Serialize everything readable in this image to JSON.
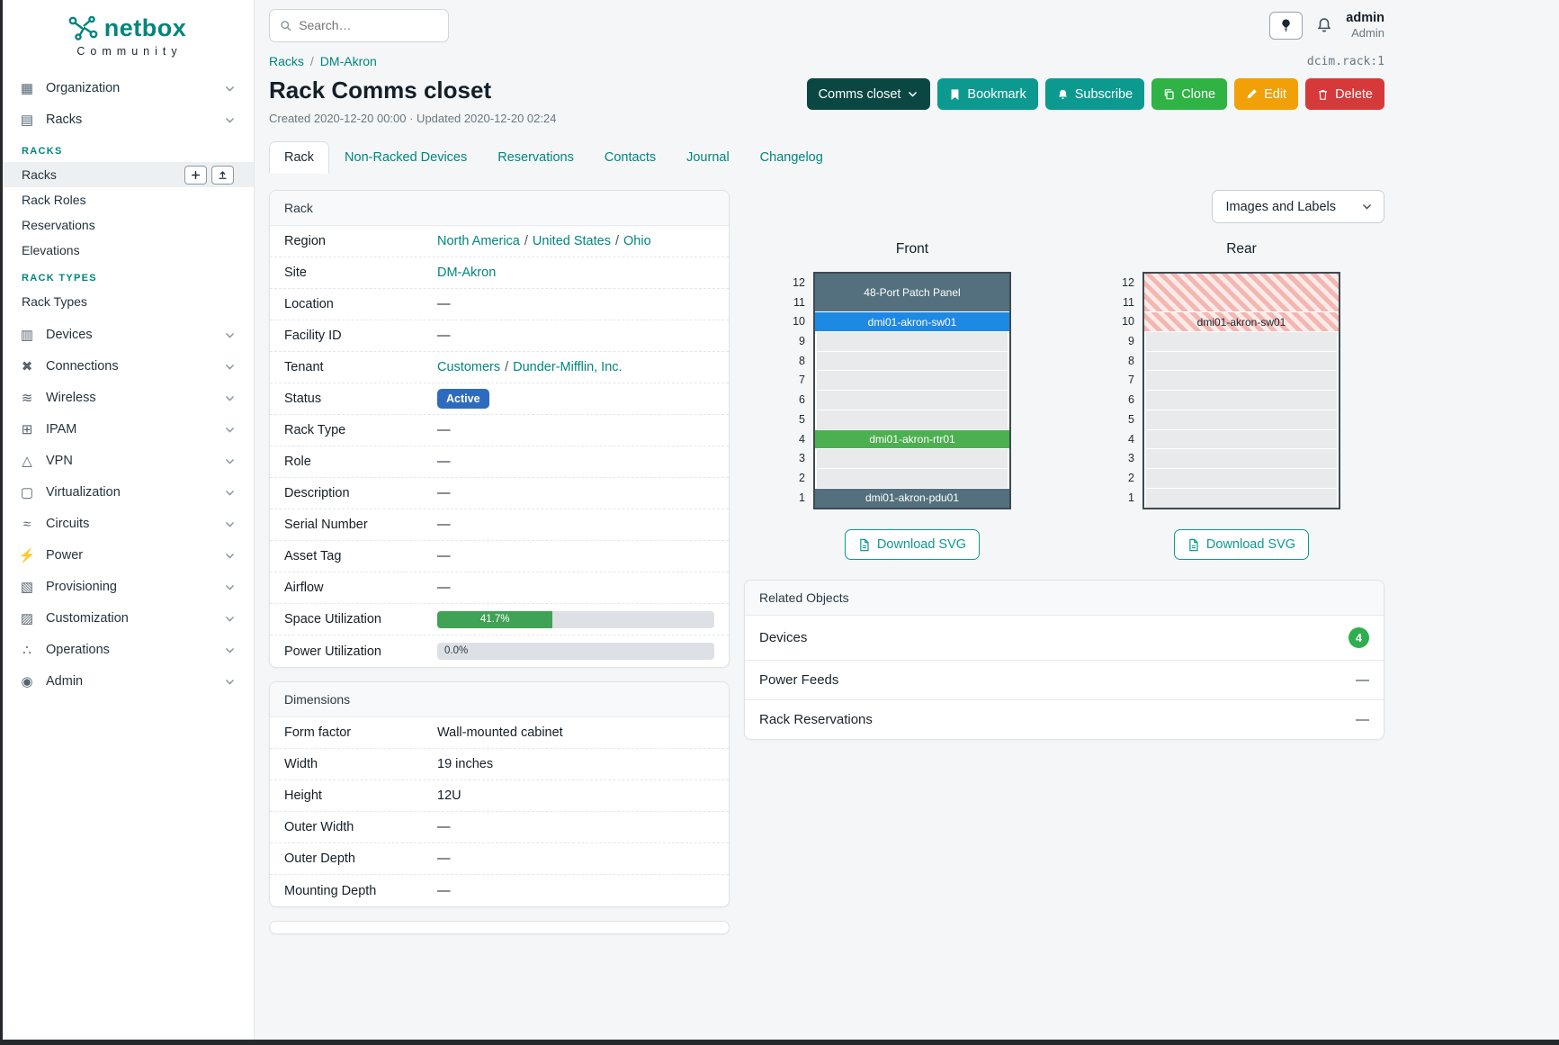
{
  "brand": {
    "name": "netbox",
    "community": "Community"
  },
  "topbar": {
    "search_placeholder": "Search…",
    "user_name": "admin",
    "user_role": "Admin"
  },
  "sidebar": {
    "sections": [
      {
        "label": "Organization",
        "icon": "▦",
        "icon_name": "organization-icon"
      },
      {
        "label": "Racks",
        "icon": "▤",
        "icon_name": "racks-icon",
        "expanded": true,
        "children": [
          {
            "type": "header",
            "label": "RACKS"
          },
          {
            "type": "link",
            "label": "Racks",
            "active": true,
            "buttons": [
              {
                "name": "add",
                "icon": "plus-icon"
              },
              {
                "name": "import",
                "icon": "upload-icon"
              }
            ]
          },
          {
            "type": "link",
            "label": "Rack Roles"
          },
          {
            "type": "link",
            "label": "Reservations"
          },
          {
            "type": "link",
            "label": "Elevations"
          },
          {
            "type": "header",
            "label": "RACK TYPES"
          },
          {
            "type": "link",
            "label": "Rack Types"
          }
        ]
      },
      {
        "label": "Devices",
        "icon": "▥",
        "icon_name": "devices-icon"
      },
      {
        "label": "Connections",
        "icon": "✖",
        "icon_name": "connections-icon"
      },
      {
        "label": "Wireless",
        "icon": "≋",
        "icon_name": "wireless-icon"
      },
      {
        "label": "IPAM",
        "icon": "⊞",
        "icon_name": "ipam-icon"
      },
      {
        "label": "VPN",
        "icon": "△",
        "icon_name": "vpn-icon"
      },
      {
        "label": "Virtualization",
        "icon": "▢",
        "icon_name": "virtualization-icon"
      },
      {
        "label": "Circuits",
        "icon": "≈",
        "icon_name": "circuits-icon"
      },
      {
        "label": "Power",
        "icon": "⚡",
        "icon_name": "power-icon"
      },
      {
        "label": "Provisioning",
        "icon": "▧",
        "icon_name": "provisioning-icon"
      },
      {
        "label": "Customization",
        "icon": "▨",
        "icon_name": "customization-icon"
      },
      {
        "label": "Operations",
        "icon": "∴",
        "icon_name": "operations-icon"
      },
      {
        "label": "Admin",
        "icon": "◉",
        "icon_name": "admin-icon"
      }
    ]
  },
  "breadcrumb": [
    {
      "label": "Racks"
    },
    {
      "label": "DM-Akron"
    }
  ],
  "object_ref": "dcim.rack:1",
  "page": {
    "title": "Rack Comms closet",
    "meta": "Created 2020-12-20 00:00 · Updated 2020-12-20 02:24"
  },
  "actions": [
    {
      "label": "Comms closet",
      "name": "comms-closet-dropdown",
      "color": "#0a4742",
      "chevron": true
    },
    {
      "label": "Bookmark",
      "name": "bookmark-button",
      "color": "#0c9a90",
      "icon": "bookmark-icon"
    },
    {
      "label": "Subscribe",
      "name": "subscribe-button",
      "color": "#0c9a90",
      "icon": "bell-icon"
    },
    {
      "label": "Clone",
      "name": "clone-button",
      "color": "#2eb344",
      "icon": "copy-icon"
    },
    {
      "label": "Edit",
      "name": "edit-button",
      "color": "#f2a007",
      "icon": "pencil-icon"
    },
    {
      "label": "Delete",
      "name": "delete-button",
      "color": "#d63939",
      "icon": "trash-icon"
    }
  ],
  "tabs": [
    {
      "label": "Rack",
      "active": true
    },
    {
      "label": "Non-Racked Devices"
    },
    {
      "label": "Reservations"
    },
    {
      "label": "Contacts"
    },
    {
      "label": "Journal"
    },
    {
      "label": "Changelog"
    }
  ],
  "rack_panel": {
    "title": "Rack",
    "rows": [
      {
        "label": "Region",
        "type": "links",
        "parts": [
          "North America",
          "United States",
          "Ohio"
        ]
      },
      {
        "label": "Site",
        "type": "links",
        "parts": [
          "DM-Akron"
        ]
      },
      {
        "label": "Location",
        "type": "text",
        "value": "—"
      },
      {
        "label": "Facility ID",
        "type": "text",
        "value": "—"
      },
      {
        "label": "Tenant",
        "type": "links",
        "parts": [
          "Customers",
          "Dunder-Mifflin, Inc."
        ]
      },
      {
        "label": "Status",
        "type": "badge",
        "value": "Active",
        "color": "#2d6bbf"
      },
      {
        "label": "Rack Type",
        "type": "text",
        "value": "—"
      },
      {
        "label": "Role",
        "type": "text",
        "value": "—"
      },
      {
        "label": "Description",
        "type": "text",
        "value": "—"
      },
      {
        "label": "Serial Number",
        "type": "text",
        "value": "—"
      },
      {
        "label": "Asset Tag",
        "type": "text",
        "value": "—"
      },
      {
        "label": "Airflow",
        "type": "text",
        "value": "—"
      },
      {
        "label": "Space Utilization",
        "type": "progress",
        "percent": 41.7,
        "value": "41.7%",
        "color": "#40a254"
      },
      {
        "label": "Power Utilization",
        "type": "progress",
        "percent": 0,
        "value": "0.0%",
        "color": "#40a254"
      }
    ]
  },
  "dimensions_panel": {
    "title": "Dimensions",
    "rows": [
      {
        "label": "Form factor",
        "value": "Wall-mounted cabinet"
      },
      {
        "label": "Width",
        "value": "19 inches"
      },
      {
        "label": "Height",
        "value": "12U"
      },
      {
        "label": "Outer Width",
        "value": "—"
      },
      {
        "label": "Outer Depth",
        "value": "—"
      },
      {
        "label": "Mounting Depth",
        "value": "—"
      }
    ]
  },
  "elevation": {
    "toggle_label": "Images and Labels",
    "download_label": "Download SVG",
    "units": [
      12,
      11,
      10,
      9,
      8,
      7,
      6,
      5,
      4,
      3,
      2,
      1
    ],
    "front": {
      "title": "Front",
      "slots": [
        {
          "u": 2,
          "label": "48-Port Patch Panel",
          "color": "#54707e",
          "text": "#ffffff"
        },
        {
          "u": 1,
          "label": "dmi01-akron-sw01",
          "color": "#1e88e5",
          "text": "#ffffff"
        },
        {
          "u": 1
        },
        {
          "u": 1
        },
        {
          "u": 1
        },
        {
          "u": 1
        },
        {
          "u": 1
        },
        {
          "u": 1,
          "label": "dmi01-akron-rtr01",
          "color": "#4caf50",
          "text": "#ffffff"
        },
        {
          "u": 1
        },
        {
          "u": 1
        },
        {
          "u": 1,
          "label": "dmi01-akron-pdu01",
          "color": "#54707e",
          "text": "#ffffff"
        }
      ]
    },
    "rear": {
      "title": "Rear",
      "slots": [
        {
          "u": 2,
          "striped": true
        },
        {
          "u": 1,
          "striped": true,
          "label": "dmi01-akron-sw01"
        },
        {
          "u": 1
        },
        {
          "u": 1
        },
        {
          "u": 1
        },
        {
          "u": 1
        },
        {
          "u": 1
        },
        {
          "u": 1
        },
        {
          "u": 1
        },
        {
          "u": 1
        },
        {
          "u": 1
        }
      ]
    }
  },
  "related_objects": {
    "title": "Related Objects",
    "rows": [
      {
        "label": "Devices",
        "badge": "4",
        "badge_color": "#2eae4f"
      },
      {
        "label": "Power Feeds",
        "value": "—"
      },
      {
        "label": "Rack Reservations",
        "value": "—"
      }
    ]
  }
}
